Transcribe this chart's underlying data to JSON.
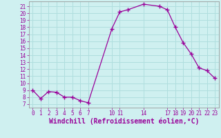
{
  "x": [
    0,
    1,
    2,
    3,
    4,
    5,
    6,
    7,
    10,
    11,
    12,
    14,
    16,
    17,
    18,
    19,
    20,
    21,
    22,
    23
  ],
  "y": [
    9.0,
    7.8,
    8.8,
    8.7,
    8.0,
    8.0,
    7.5,
    7.2,
    17.8,
    20.2,
    20.5,
    21.3,
    21.0,
    20.5,
    18.0,
    15.8,
    14.2,
    12.2,
    11.8,
    10.7
  ],
  "line_color": "#990099",
  "marker": "+",
  "marker_size": 4,
  "bg_color": "#cff0f0",
  "grid_color": "#b0dede",
  "xlabel": "Windchill (Refroidissement éolien,°C)",
  "xlim": [
    -0.5,
    23.5
  ],
  "ylim": [
    6.5,
    21.7
  ],
  "xticks": [
    0,
    1,
    2,
    3,
    4,
    5,
    6,
    7,
    10,
    11,
    14,
    17,
    18,
    19,
    20,
    21,
    22,
    23
  ],
  "yticks": [
    7,
    8,
    9,
    10,
    11,
    12,
    13,
    14,
    15,
    16,
    17,
    18,
    19,
    20,
    21
  ],
  "tick_fontsize": 5.5,
  "xlabel_fontsize": 7.0,
  "spine_color": "#999999"
}
